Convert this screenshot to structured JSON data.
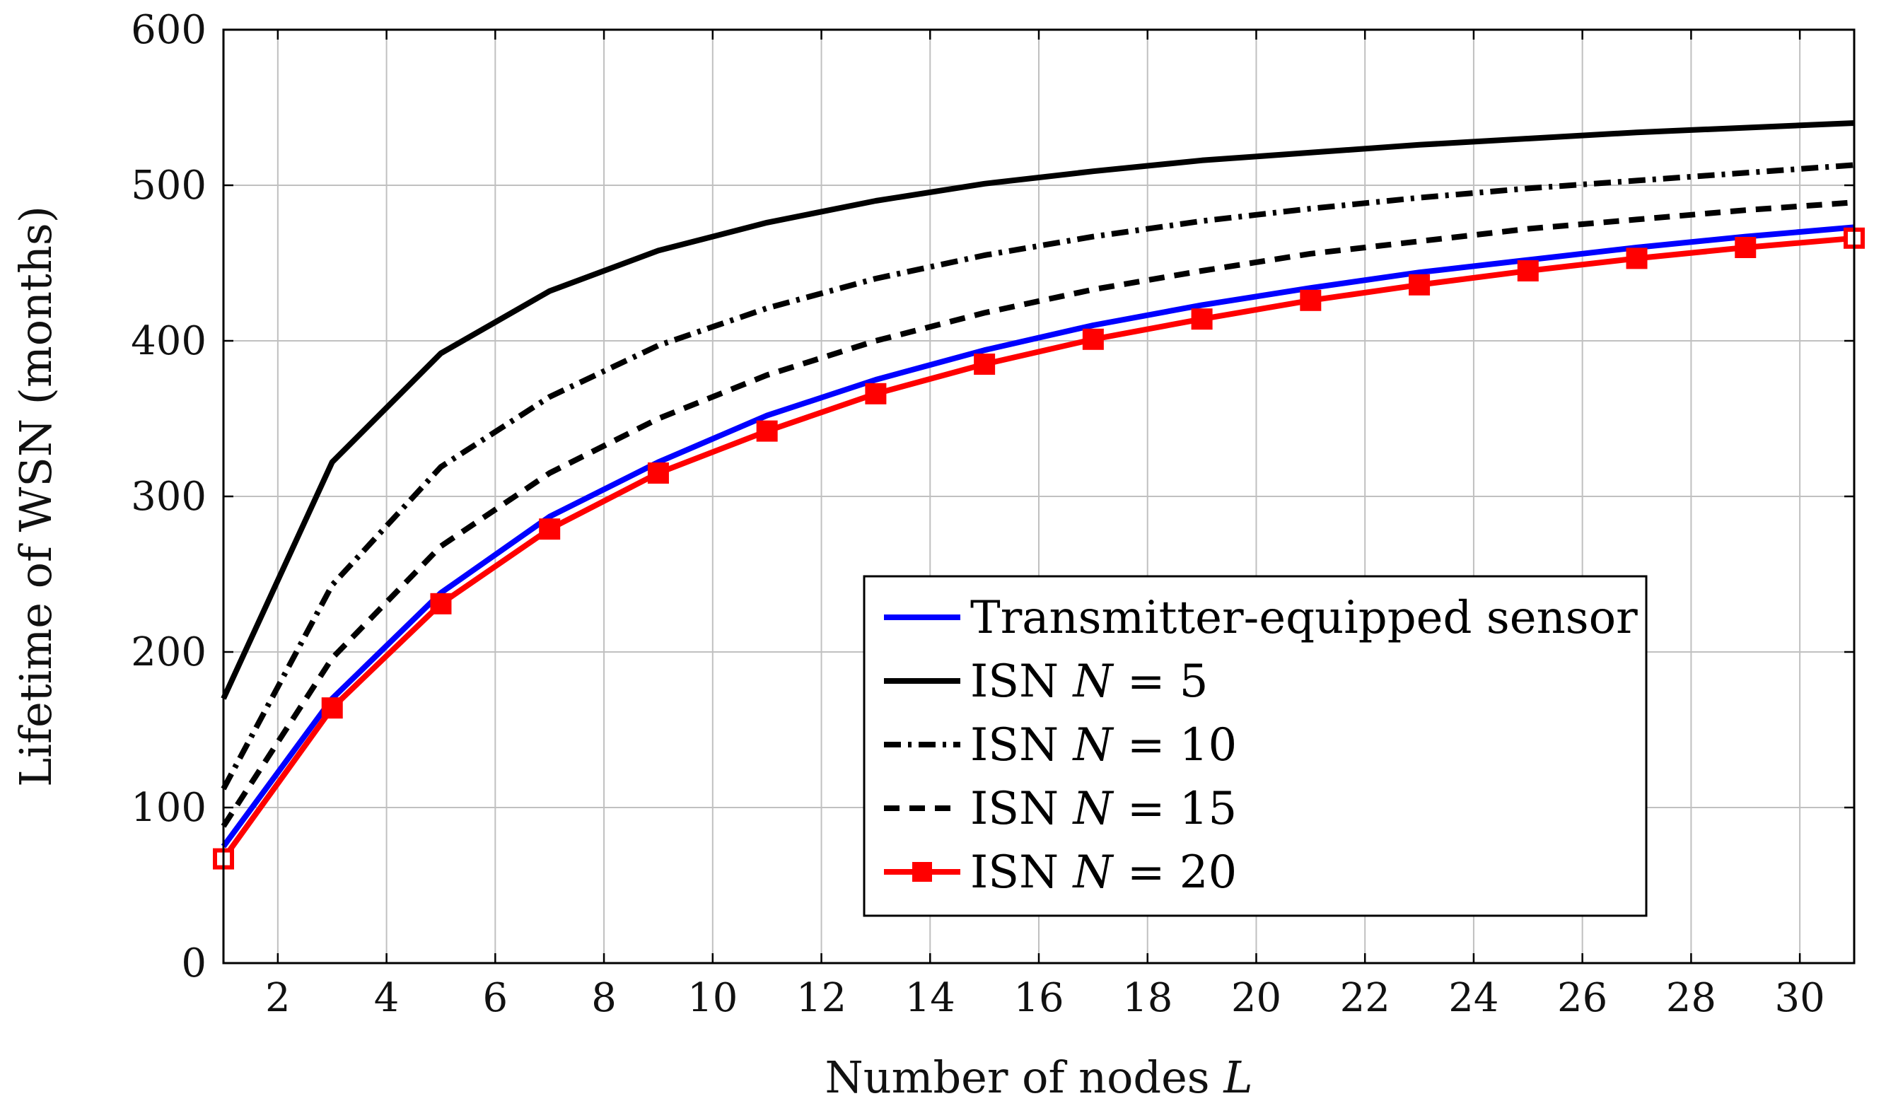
{
  "chart_data": {
    "type": "line",
    "title": "",
    "xlabel": "Number of nodes",
    "xlabel_var": "L",
    "ylabel": "Lifetime of WSN (months)",
    "xlim": [
      1,
      31
    ],
    "ylim": [
      0,
      600
    ],
    "xticks": [
      2,
      4,
      6,
      8,
      10,
      12,
      14,
      16,
      18,
      20,
      22,
      24,
      26,
      28,
      30
    ],
    "yticks": [
      0,
      100,
      200,
      300,
      400,
      500,
      600
    ],
    "grid": true,
    "legend_position": "lower-right",
    "x": [
      1,
      3,
      5,
      7,
      9,
      11,
      13,
      15,
      17,
      19,
      21,
      23,
      25,
      27,
      29,
      31
    ],
    "series": [
      {
        "name": "Transmitter-equipped sensor",
        "legend_prefix": "Transmitter-equipped sensor",
        "legend_math": "",
        "legend_suffix": "",
        "color": "#0000ff",
        "style": "solid",
        "marker": "none",
        "values": [
          75,
          170,
          238,
          287,
          322,
          352,
          375,
          394,
          410,
          423,
          434,
          444,
          452,
          460,
          467,
          473
        ]
      },
      {
        "name": "ISN N = 5",
        "legend_prefix": "ISN ",
        "legend_math": "N",
        "legend_suffix": " = 5",
        "color": "#000000",
        "style": "solid",
        "marker": "none",
        "values": [
          170,
          322,
          392,
          432,
          458,
          476,
          490,
          501,
          509,
          516,
          521,
          526,
          530,
          534,
          537,
          540
        ]
      },
      {
        "name": "ISN N = 10",
        "legend_prefix": "ISN ",
        "legend_math": "N",
        "legend_suffix": " = 10",
        "color": "#000000",
        "style": "dashdot",
        "marker": "none",
        "values": [
          112,
          243,
          319,
          364,
          397,
          421,
          440,
          455,
          467,
          477,
          485,
          492,
          498,
          503,
          508,
          513
        ]
      },
      {
        "name": "ISN N = 15",
        "legend_prefix": "ISN ",
        "legend_math": "N",
        "legend_suffix": " = 15",
        "color": "#000000",
        "style": "dashed",
        "marker": "none",
        "values": [
          88,
          196,
          268,
          315,
          350,
          378,
          400,
          418,
          433,
          445,
          456,
          464,
          472,
          478,
          484,
          489
        ]
      },
      {
        "name": "ISN N = 20",
        "legend_prefix": "ISN ",
        "legend_math": "N",
        "legend_suffix": " = 20",
        "color": "#ff0000",
        "style": "solid",
        "marker": "square",
        "values": [
          67,
          164,
          231,
          279,
          315,
          342,
          366,
          385,
          401,
          414,
          426,
          436,
          445,
          453,
          460,
          466
        ]
      }
    ]
  }
}
